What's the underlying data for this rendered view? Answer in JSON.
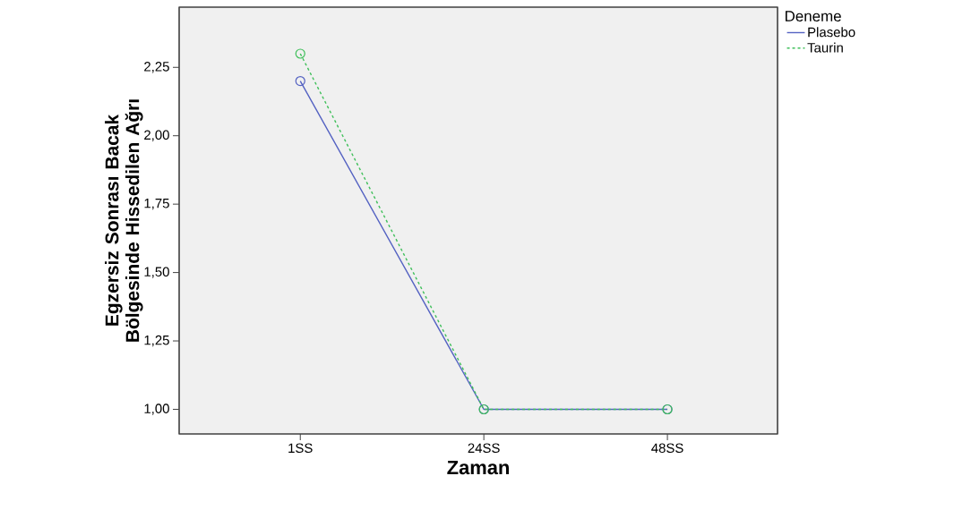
{
  "chart_data": {
    "type": "line",
    "xlabel": "Zaman",
    "ylabel": "Egzersiz Sonrası Bacak Bölgesinde Hissedilen Ağrı",
    "legend_title": "Deneme",
    "categories": [
      "1SS",
      "24SS",
      "48SS"
    ],
    "series": [
      {
        "name": "Plasebo",
        "color": "#5462c2",
        "values": [
          2.2,
          1.0,
          1.0
        ],
        "line_style": "solid"
      },
      {
        "name": "Taurin",
        "color": "#3fbf5a",
        "values": [
          2.3,
          1.0,
          1.0
        ],
        "line_style": "dashed"
      }
    ],
    "ylim": [
      0.91,
      2.47
    ],
    "yticks": [
      {
        "value": 1.0,
        "label": "1,00"
      },
      {
        "value": 1.25,
        "label": "1,25"
      },
      {
        "value": 1.5,
        "label": "1,50"
      },
      {
        "value": 1.75,
        "label": "1,75"
      },
      {
        "value": 2.0,
        "label": "2,00"
      },
      {
        "value": 2.25,
        "label": "2,25"
      }
    ],
    "marker": "circle",
    "grid": false,
    "legend": "top right"
  }
}
